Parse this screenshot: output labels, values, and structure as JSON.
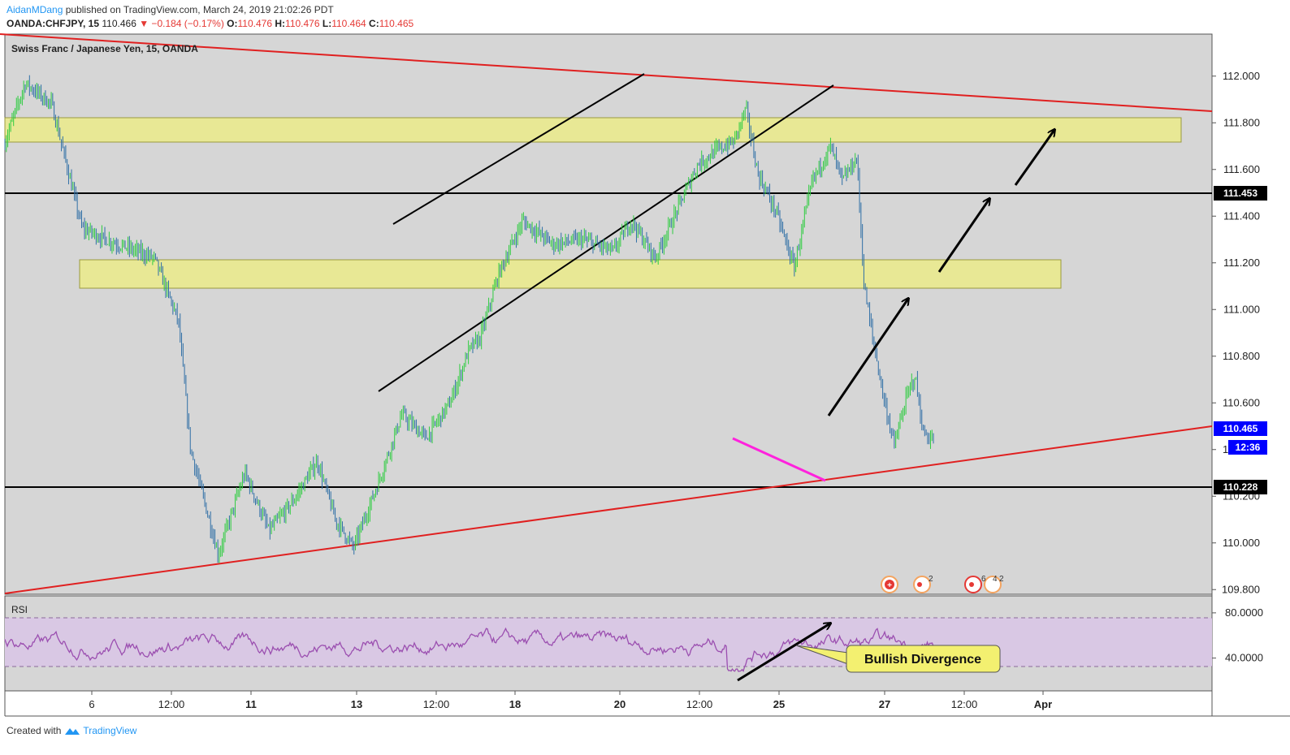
{
  "header": {
    "author": "AidanMDang",
    "published_text": "published on TradingView.com, March 24, 2019 21:02:26 PDT",
    "symbol": "OANDA:CHFJPY, 15",
    "last": "110.466",
    "change": "▼ −0.184 (−0.17%)",
    "o_label": "O:",
    "o": "110.476",
    "h_label": "H:",
    "h": "110.476",
    "l_label": "L:",
    "l": "110.464",
    "c_label": "C:",
    "c": "110.465"
  },
  "footer": {
    "created_with": "Created with",
    "brand": "TradingView"
  },
  "colors": {
    "chart_bg": "#d6d6d6",
    "up": "#2ecc40",
    "down": "#2f6fa6",
    "trend_red": "#e02020",
    "zone_fill": "#e8e895",
    "zone_border": "#9a9a40",
    "rsi_line": "#9b4fb0",
    "rsi_band": "#d9c8e4",
    "divergence": "#ff22dd",
    "price_tag": "#0000ff"
  },
  "chart_data": [
    {
      "type": "candlestick",
      "title": "Swiss Franc / Japanese Yen, 15, OANDA",
      "y_axis": {
        "ticks": [
          112.0,
          111.8,
          111.6,
          111.4,
          111.2,
          111.0,
          110.8,
          110.6,
          110.4,
          110.2,
          110.0,
          109.8
        ],
        "tick_labels": [
          "112.000",
          "111.800",
          "111.600",
          "111.400",
          "111.200",
          "111.000",
          "110.800",
          "110.600",
          "110.400",
          "110.200",
          "110.000",
          "109.800"
        ],
        "range": [
          109.78,
          112.18
        ],
        "grid": false
      },
      "x_axis": {
        "tick_labels": [
          "6",
          "12:00",
          "11",
          "13",
          "12:00",
          "18",
          "20",
          "12:00",
          "25",
          "27",
          "12:00",
          "Apr"
        ],
        "bold": [
          "11",
          "13",
          "18",
          "20",
          "25",
          "27",
          "Apr"
        ]
      },
      "price_path": [
        [
          0,
          111.7
        ],
        [
          0.018,
          111.97
        ],
        [
          0.04,
          111.88
        ],
        [
          0.065,
          111.35
        ],
        [
          0.085,
          111.3
        ],
        [
          0.125,
          111.22
        ],
        [
          0.145,
          110.95
        ],
        [
          0.155,
          110.4
        ],
        [
          0.178,
          109.95
        ],
        [
          0.2,
          110.3
        ],
        [
          0.22,
          110.05
        ],
        [
          0.24,
          110.18
        ],
        [
          0.26,
          110.35
        ],
        [
          0.275,
          110.1
        ],
        [
          0.29,
          109.98
        ],
        [
          0.31,
          110.25
        ],
        [
          0.33,
          110.55
        ],
        [
          0.35,
          110.45
        ],
        [
          0.37,
          110.6
        ],
        [
          0.385,
          110.82
        ],
        [
          0.395,
          110.88
        ],
        [
          0.41,
          111.15
        ],
        [
          0.43,
          111.38
        ],
        [
          0.455,
          111.28
        ],
        [
          0.48,
          111.3
        ],
        [
          0.505,
          111.25
        ],
        [
          0.52,
          111.38
        ],
        [
          0.54,
          111.22
        ],
        [
          0.56,
          111.45
        ],
        [
          0.575,
          111.62
        ],
        [
          0.59,
          111.68
        ],
        [
          0.605,
          111.72
        ],
        [
          0.615,
          111.86
        ],
        [
          0.625,
          111.58
        ],
        [
          0.64,
          111.42
        ],
        [
          0.655,
          111.18
        ],
        [
          0.67,
          111.55
        ],
        [
          0.685,
          111.7
        ],
        [
          0.695,
          111.55
        ],
        [
          0.707,
          111.65
        ],
        [
          0.713,
          111.1
        ],
        [
          0.72,
          110.88
        ],
        [
          0.73,
          110.6
        ],
        [
          0.738,
          110.42
        ],
        [
          0.748,
          110.62
        ],
        [
          0.755,
          110.72
        ],
        [
          0.762,
          110.47
        ],
        [
          0.77,
          110.44
        ]
      ],
      "reference_lines": [
        {
          "label": "111.453",
          "price": 111.453
        },
        {
          "label": "110.228",
          "price": 110.228
        }
      ],
      "price_tags": [
        {
          "label": "110.465",
          "price": 110.465
        },
        {
          "label": "12:36"
        }
      ],
      "zones": [
        {
          "from_price": 111.67,
          "to_price": 111.77
        },
        {
          "from_price": 111.05,
          "to_price": 111.18
        }
      ],
      "annotations": [
        "Bullish Divergence"
      ],
      "event_badges": [
        "2",
        "6",
        "4",
        "2"
      ]
    },
    {
      "type": "line",
      "title": "RSI",
      "y_axis": {
        "tick_labels": [
          "80.0000",
          "40.0000"
        ],
        "range": [
          11,
          95
        ],
        "band": [
          30,
          70
        ]
      }
    }
  ]
}
